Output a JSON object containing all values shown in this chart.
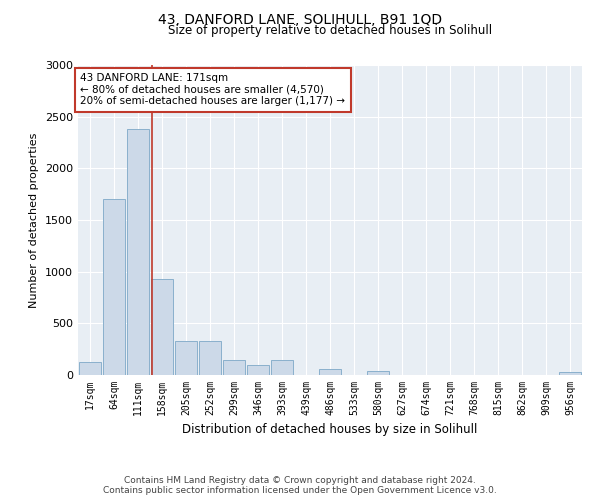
{
  "title": "43, DANFORD LANE, SOLIHULL, B91 1QD",
  "subtitle": "Size of property relative to detached houses in Solihull",
  "xlabel": "Distribution of detached houses by size in Solihull",
  "ylabel": "Number of detached properties",
  "bin_labels": [
    "17sqm",
    "64sqm",
    "111sqm",
    "158sqm",
    "205sqm",
    "252sqm",
    "299sqm",
    "346sqm",
    "393sqm",
    "439sqm",
    "486sqm",
    "533sqm",
    "580sqm",
    "627sqm",
    "674sqm",
    "721sqm",
    "768sqm",
    "815sqm",
    "862sqm",
    "909sqm",
    "956sqm"
  ],
  "bar_values": [
    130,
    1700,
    2380,
    930,
    330,
    330,
    150,
    95,
    150,
    0,
    55,
    0,
    35,
    0,
    0,
    0,
    0,
    0,
    0,
    0,
    30
  ],
  "bar_color": "#ccd9e8",
  "bar_edge_color": "#8ab0cc",
  "vline_x": 2.57,
  "vline_color": "#c0392b",
  "annotation_text": "43 DANFORD LANE: 171sqm\n← 80% of detached houses are smaller (4,570)\n20% of semi-detached houses are larger (1,177) →",
  "annotation_box_color": "white",
  "annotation_box_edge": "#c0392b",
  "ylim": [
    0,
    3000
  ],
  "yticks": [
    0,
    500,
    1000,
    1500,
    2000,
    2500,
    3000
  ],
  "plot_bg_color": "#e8eef4",
  "footer_line1": "Contains HM Land Registry data © Crown copyright and database right 2024.",
  "footer_line2": "Contains public sector information licensed under the Open Government Licence v3.0."
}
